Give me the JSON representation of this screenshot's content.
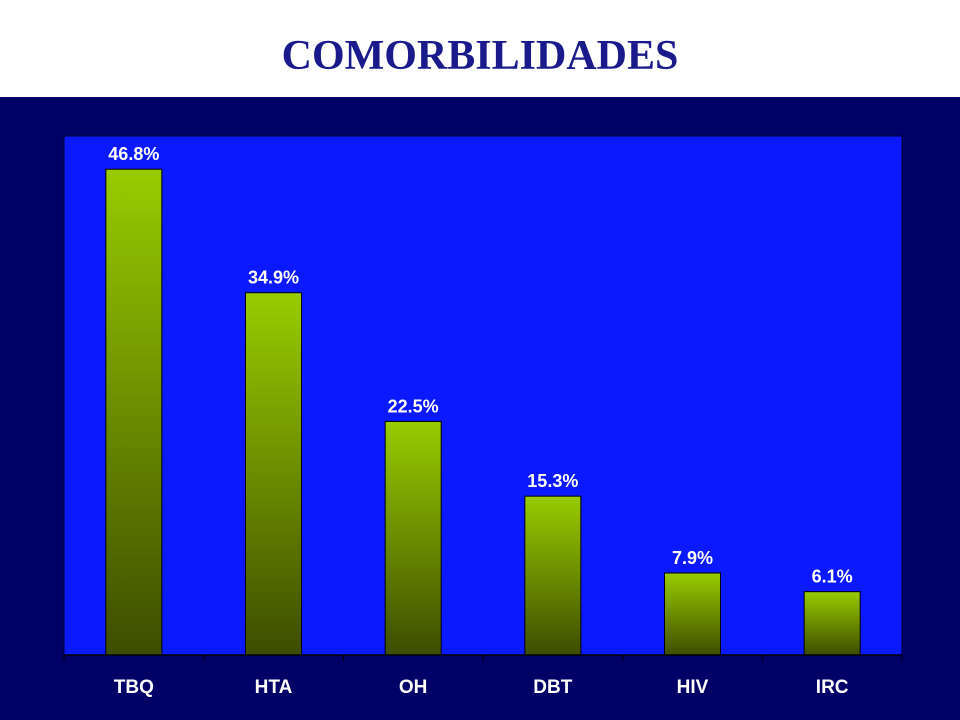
{
  "title": "COMORBILIDADES",
  "colors": {
    "background": "#000066",
    "plot_area": "#0a19ff",
    "bar_top": "#99cc00",
    "bar_bottom": "#3d4d00",
    "title": "#1a1a8c",
    "labels": "#ffffff"
  },
  "chart_data": {
    "type": "bar",
    "title": "COMORBILIDADES",
    "categories": [
      "TBQ",
      "HTA",
      "OH",
      "DBT",
      "HIV",
      "IRC"
    ],
    "values": [
      46.8,
      34.9,
      22.5,
      15.3,
      7.9,
      6.1
    ],
    "data_labels": [
      "46.8%",
      "34.9%",
      "22.5%",
      "15.3%",
      "7.9%",
      "6.1%"
    ],
    "unit": "%",
    "xlabel": "",
    "ylabel": "",
    "ylim": [
      0,
      50
    ],
    "grid": false,
    "legend": "none"
  }
}
